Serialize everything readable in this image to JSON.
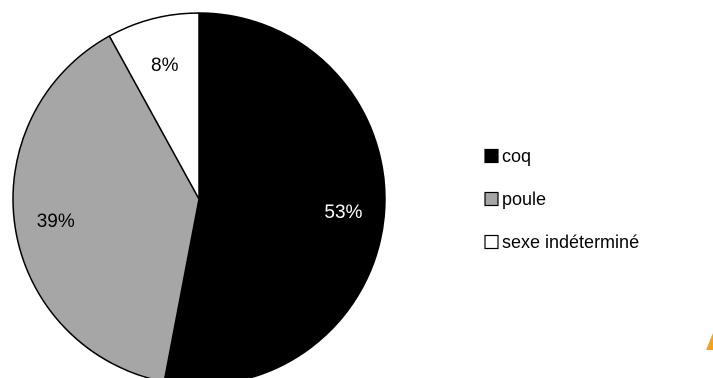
{
  "chart_data": {
    "type": "pie",
    "title": "",
    "categories": [
      "coq",
      "poule",
      "sexe indéterminé"
    ],
    "values": [
      53,
      39,
      8
    ],
    "labels": [
      "53%",
      "39%",
      "8%"
    ],
    "colors": [
      "#000000",
      "#a6a6a6",
      "#ffffff"
    ],
    "label_colors": [
      "#ffffff",
      "#000000",
      "#000000"
    ],
    "legend_position": "right",
    "start": "top",
    "direction": "clockwise"
  },
  "accent_color": "#f2a51c"
}
